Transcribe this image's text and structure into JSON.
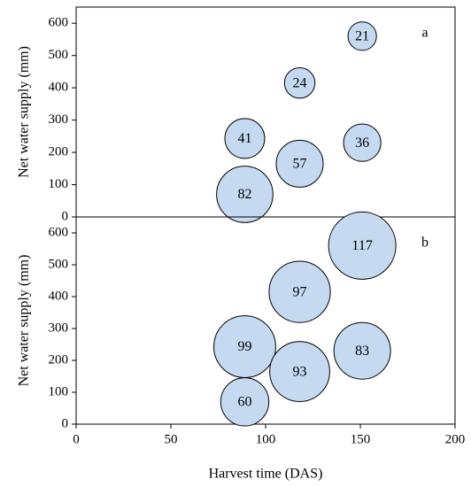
{
  "chart_data": [
    {
      "type": "scatter",
      "panel_label": "a",
      "xlabel": "Harvest time (DAS)",
      "ylabel": "Net water supply (mm)",
      "xlim": [
        0,
        200
      ],
      "ylim": [
        0,
        650
      ],
      "x_ticks": [
        "0",
        "50",
        "100",
        "150",
        "200"
      ],
      "y_ticks": [
        "0",
        "100",
        "200",
        "300",
        "400",
        "500",
        "600"
      ],
      "bubble_color": "#c5d9f1",
      "bubble_edge_color": "#000000",
      "points": [
        {
          "x": 151,
          "y": 560,
          "size": 21,
          "label": "21"
        },
        {
          "x": 118,
          "y": 415,
          "size": 24,
          "label": "24"
        },
        {
          "x": 89,
          "y": 243,
          "size": 41,
          "label": "41"
        },
        {
          "x": 151,
          "y": 230,
          "size": 36,
          "label": "36"
        },
        {
          "x": 118,
          "y": 165,
          "size": 57,
          "label": "57"
        },
        {
          "x": 89,
          "y": 70,
          "size": 82,
          "label": "82"
        }
      ]
    },
    {
      "type": "scatter",
      "panel_label": "b",
      "xlabel": "Harvest time (DAS)",
      "ylabel": "Net water supply (mm)",
      "xlim": [
        0,
        200
      ],
      "ylim": [
        0,
        650
      ],
      "x_ticks": [
        "0",
        "50",
        "100",
        "150",
        "200"
      ],
      "y_ticks": [
        "0",
        "100",
        "200",
        "300",
        "400",
        "500",
        "600"
      ],
      "bubble_color": "#c5d9f1",
      "bubble_edge_color": "#000000",
      "points": [
        {
          "x": 151,
          "y": 560,
          "size": 117,
          "label": "117"
        },
        {
          "x": 118,
          "y": 415,
          "size": 97,
          "label": "97"
        },
        {
          "x": 89,
          "y": 243,
          "size": 99,
          "label": "99"
        },
        {
          "x": 151,
          "y": 230,
          "size": 83,
          "label": "83"
        },
        {
          "x": 118,
          "y": 165,
          "size": 93,
          "label": "93"
        },
        {
          "x": 89,
          "y": 70,
          "size": 60,
          "label": "60"
        }
      ]
    }
  ]
}
